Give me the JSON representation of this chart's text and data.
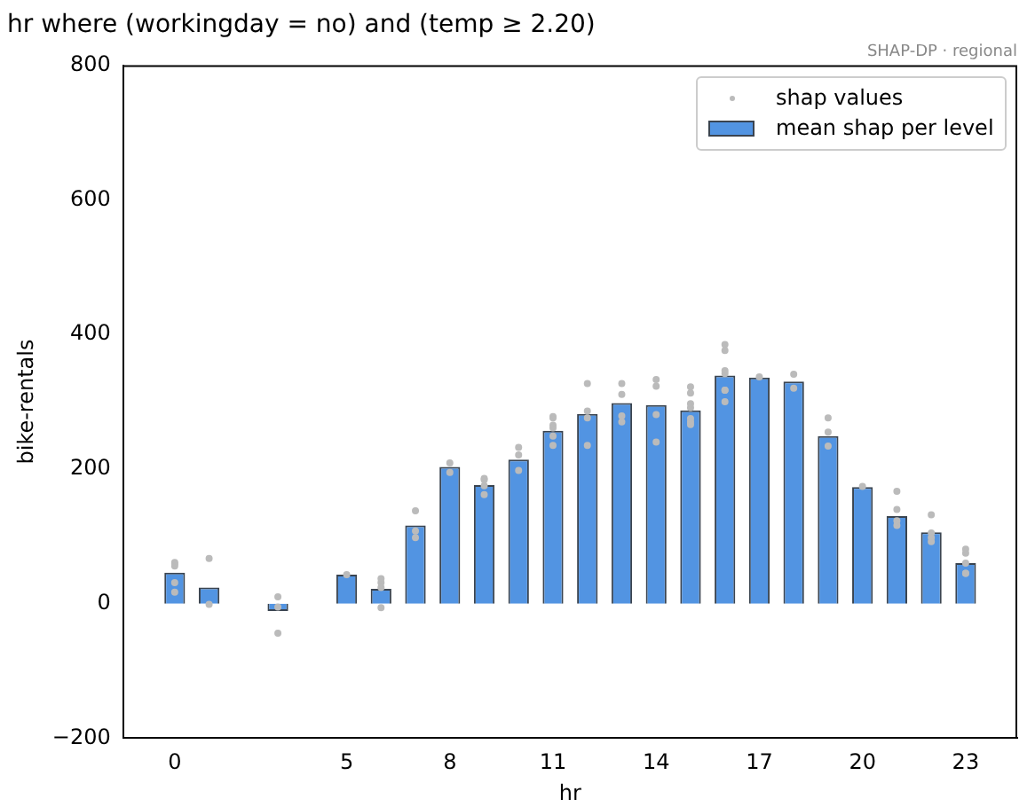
{
  "chart_data": {
    "type": "bar",
    "title": "hr where (workingday = no) and (temp ≥ 2.20)",
    "xlabel": "hr",
    "ylabel": "bike-rentals",
    "annotations": [
      "SHAP-DP · regional"
    ],
    "xlim": [
      -1.5,
      24.5
    ],
    "xticks": [
      0,
      5,
      8,
      11,
      14,
      17,
      20,
      23
    ],
    "ylim": [
      -200,
      800
    ],
    "yticks": [
      -200,
      0,
      200,
      400,
      600,
      800
    ],
    "grid": false,
    "legend": "top right",
    "marker": "circle",
    "series": [
      {
        "name": "shap values",
        "type": "scatter",
        "color": "#bbbbbb",
        "x": [
          0,
          0,
          0,
          0,
          0,
          1,
          1,
          3,
          3,
          3,
          5,
          6,
          6,
          6,
          6,
          7,
          7,
          7,
          8,
          8,
          9,
          9,
          9,
          9,
          10,
          10,
          10,
          11,
          11,
          11,
          11,
          11,
          11,
          12,
          12,
          12,
          12,
          13,
          13,
          13,
          13,
          14,
          14,
          14,
          14,
          15,
          15,
          15,
          15,
          15,
          15,
          15,
          16,
          16,
          16,
          16,
          16,
          16,
          16,
          17,
          18,
          18,
          19,
          19,
          19,
          20,
          21,
          21,
          21,
          21,
          22,
          22,
          22,
          22,
          23,
          23,
          23,
          23,
          23
        ],
        "values": [
          56,
          59,
          61,
          31,
          17,
          67,
          -1,
          10,
          -44,
          -5,
          43,
          24,
          37,
          31,
          -6,
          108,
          98,
          138,
          209,
          195,
          184,
          186,
          175,
          162,
          221,
          232,
          198,
          276,
          278,
          265,
          261,
          249,
          235,
          327,
          286,
          276,
          235,
          311,
          327,
          279,
          270,
          333,
          323,
          281,
          240,
          322,
          313,
          297,
          291,
          275,
          266,
          270,
          385,
          376,
          346,
          342,
          317,
          317,
          300,
          337,
          341,
          320,
          276,
          255,
          234,
          174,
          167,
          140,
          123,
          116,
          132,
          105,
          98,
          92,
          81,
          75,
          60,
          45,
          45
        ]
      },
      {
        "name": "mean shap per level",
        "color": "#5294e2",
        "x": [
          0,
          1,
          3,
          5,
          6,
          7,
          8,
          9,
          10,
          11,
          12,
          13,
          14,
          15,
          16,
          17,
          18,
          19,
          20,
          21,
          22,
          23
        ],
        "values": [
          46,
          24,
          -11,
          43,
          22,
          116,
          203,
          176,
          214,
          257,
          282,
          298,
          295,
          287,
          339,
          336,
          330,
          249,
          173,
          130,
          106,
          60
        ]
      }
    ]
  }
}
